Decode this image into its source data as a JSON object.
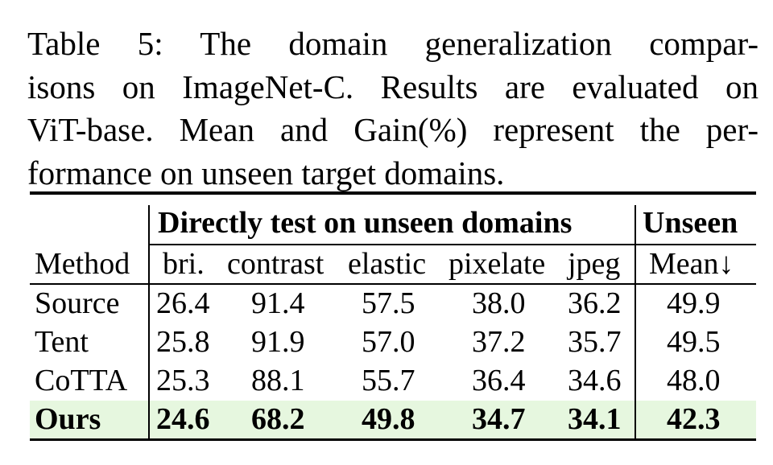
{
  "caption": {
    "lines": [
      "Table 5:   The domain generalization compar-",
      "isons on ImageNet-C. Results are evaluated on",
      "ViT-base. Mean and Gain(%) represent the per-",
      "formance on unseen target domains."
    ]
  },
  "table": {
    "group_headers": {
      "directly": "Directly test on unseen domains",
      "unseen": "Unseen"
    },
    "columns": [
      "Method",
      "bri.",
      "contrast",
      "elastic",
      "pixelate",
      "jpeg",
      "Mean↓"
    ],
    "rows": [
      {
        "method": "Source",
        "values": [
          "26.4",
          "91.4",
          "57.5",
          "38.0",
          "36.2",
          "49.9"
        ]
      },
      {
        "method": "Tent",
        "values": [
          "25.8",
          "91.9",
          "57.0",
          "37.2",
          "35.7",
          "49.5"
        ]
      },
      {
        "method": "CoTTA",
        "values": [
          "25.3",
          "88.1",
          "55.7",
          "36.4",
          "34.6",
          "48.0"
        ]
      },
      {
        "method": "Ours",
        "values": [
          "24.6",
          "68.2",
          "49.8",
          "34.7",
          "34.1",
          "42.3"
        ]
      }
    ],
    "highlight_color": "#e6f7df"
  }
}
